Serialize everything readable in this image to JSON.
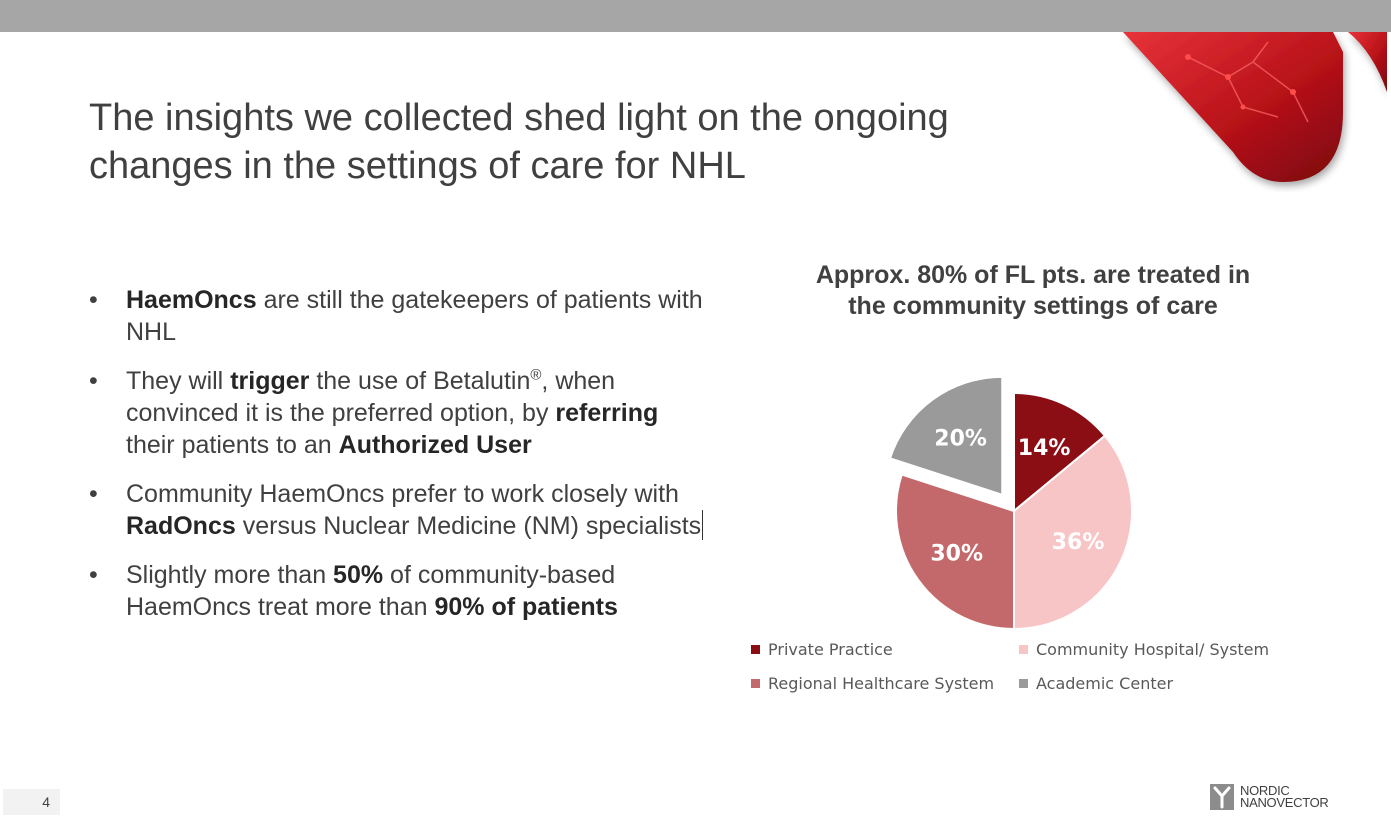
{
  "slide": {
    "title_lines": [
      "The insights we collected shed light on the ongoing",
      "changes in the settings of care for NHL"
    ],
    "bullet_marker": "•",
    "bullets": [
      [
        {
          "text": "HaemOncs",
          "bold": true
        },
        {
          "text": " are still the gatekeepers of patients with NHL",
          "bold": false
        }
      ],
      [
        {
          "text": "They will ",
          "bold": false
        },
        {
          "text": "trigger",
          "bold": true
        },
        {
          "text": " the use of Betalutin",
          "bold": false
        },
        {
          "text": "®",
          "bold": false,
          "sup": true
        },
        {
          "text": ", when convinced it is the preferred option, by ",
          "bold": false
        },
        {
          "text": "referring",
          "bold": true
        },
        {
          "text": " their patients to an ",
          "bold": false
        },
        {
          "text": "Authorized User",
          "bold": true
        }
      ],
      [
        {
          "text": "Community HaemOncs prefer to work closely with ",
          "bold": false
        },
        {
          "text": "RadOncs",
          "bold": true
        },
        {
          "text": " versus Nuclear Medicine (NM) specialists",
          "bold": false
        }
      ],
      [
        {
          "text": "Slightly more than ",
          "bold": false
        },
        {
          "text": "50%",
          "bold": true
        },
        {
          "text": " of community-based HaemOncs treat more than ",
          "bold": false
        },
        {
          "text": "90% of patients",
          "bold": true
        }
      ]
    ],
    "page_number": "4",
    "logo": {
      "line1": "NORDIC",
      "line2": "NANOVECTOR"
    }
  },
  "chart_data": {
    "type": "pie",
    "title_lines": [
      "Approx. 80% of FL pts. are treated in",
      "the community settings of care"
    ],
    "slices": [
      {
        "name": "Private Practice",
        "value": 14,
        "label": "14%",
        "color": "#8b0e14"
      },
      {
        "name": "Community Hospital/ System",
        "value": 36,
        "label": "36%",
        "color": "#f8c5c6"
      },
      {
        "name": "Regional Healthcare System",
        "value": 30,
        "label": "30%",
        "color": "#c4696b"
      },
      {
        "name": "Academic Center",
        "value": 20,
        "label": "20%",
        "color": "#9a9a9a",
        "exploded": true
      }
    ],
    "legend_position": "bottom"
  }
}
